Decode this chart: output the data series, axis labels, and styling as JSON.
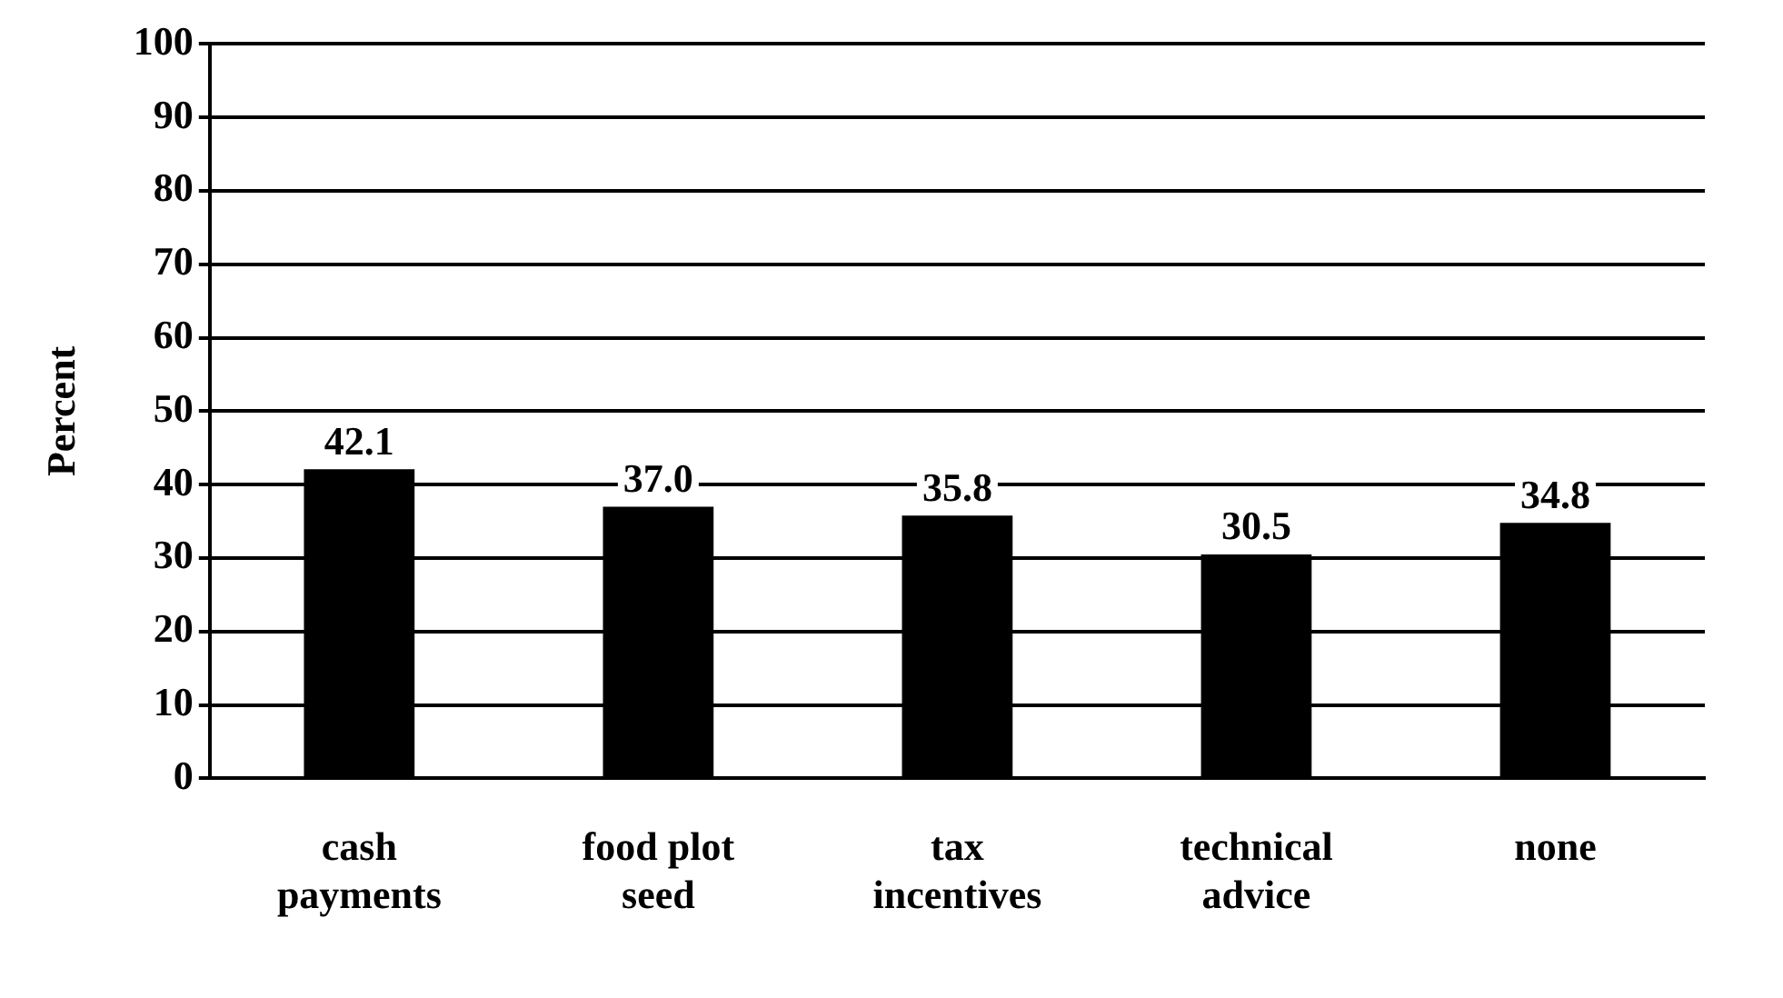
{
  "chart_data": {
    "type": "bar",
    "ylabel": "Percent",
    "categories": [
      "cash payments",
      "food plot seed",
      "tax incentives",
      "technical advice",
      "none"
    ],
    "values": [
      42.1,
      37.0,
      35.8,
      30.5,
      34.8
    ],
    "value_labels": [
      "42.1",
      "37.0",
      "35.8",
      "30.5",
      "34.8"
    ],
    "color": "#000000",
    "ylim": [
      0,
      100
    ],
    "yticks": [
      0,
      10,
      20,
      30,
      40,
      50,
      60,
      70,
      80,
      90,
      100
    ],
    "grid": "y"
  }
}
